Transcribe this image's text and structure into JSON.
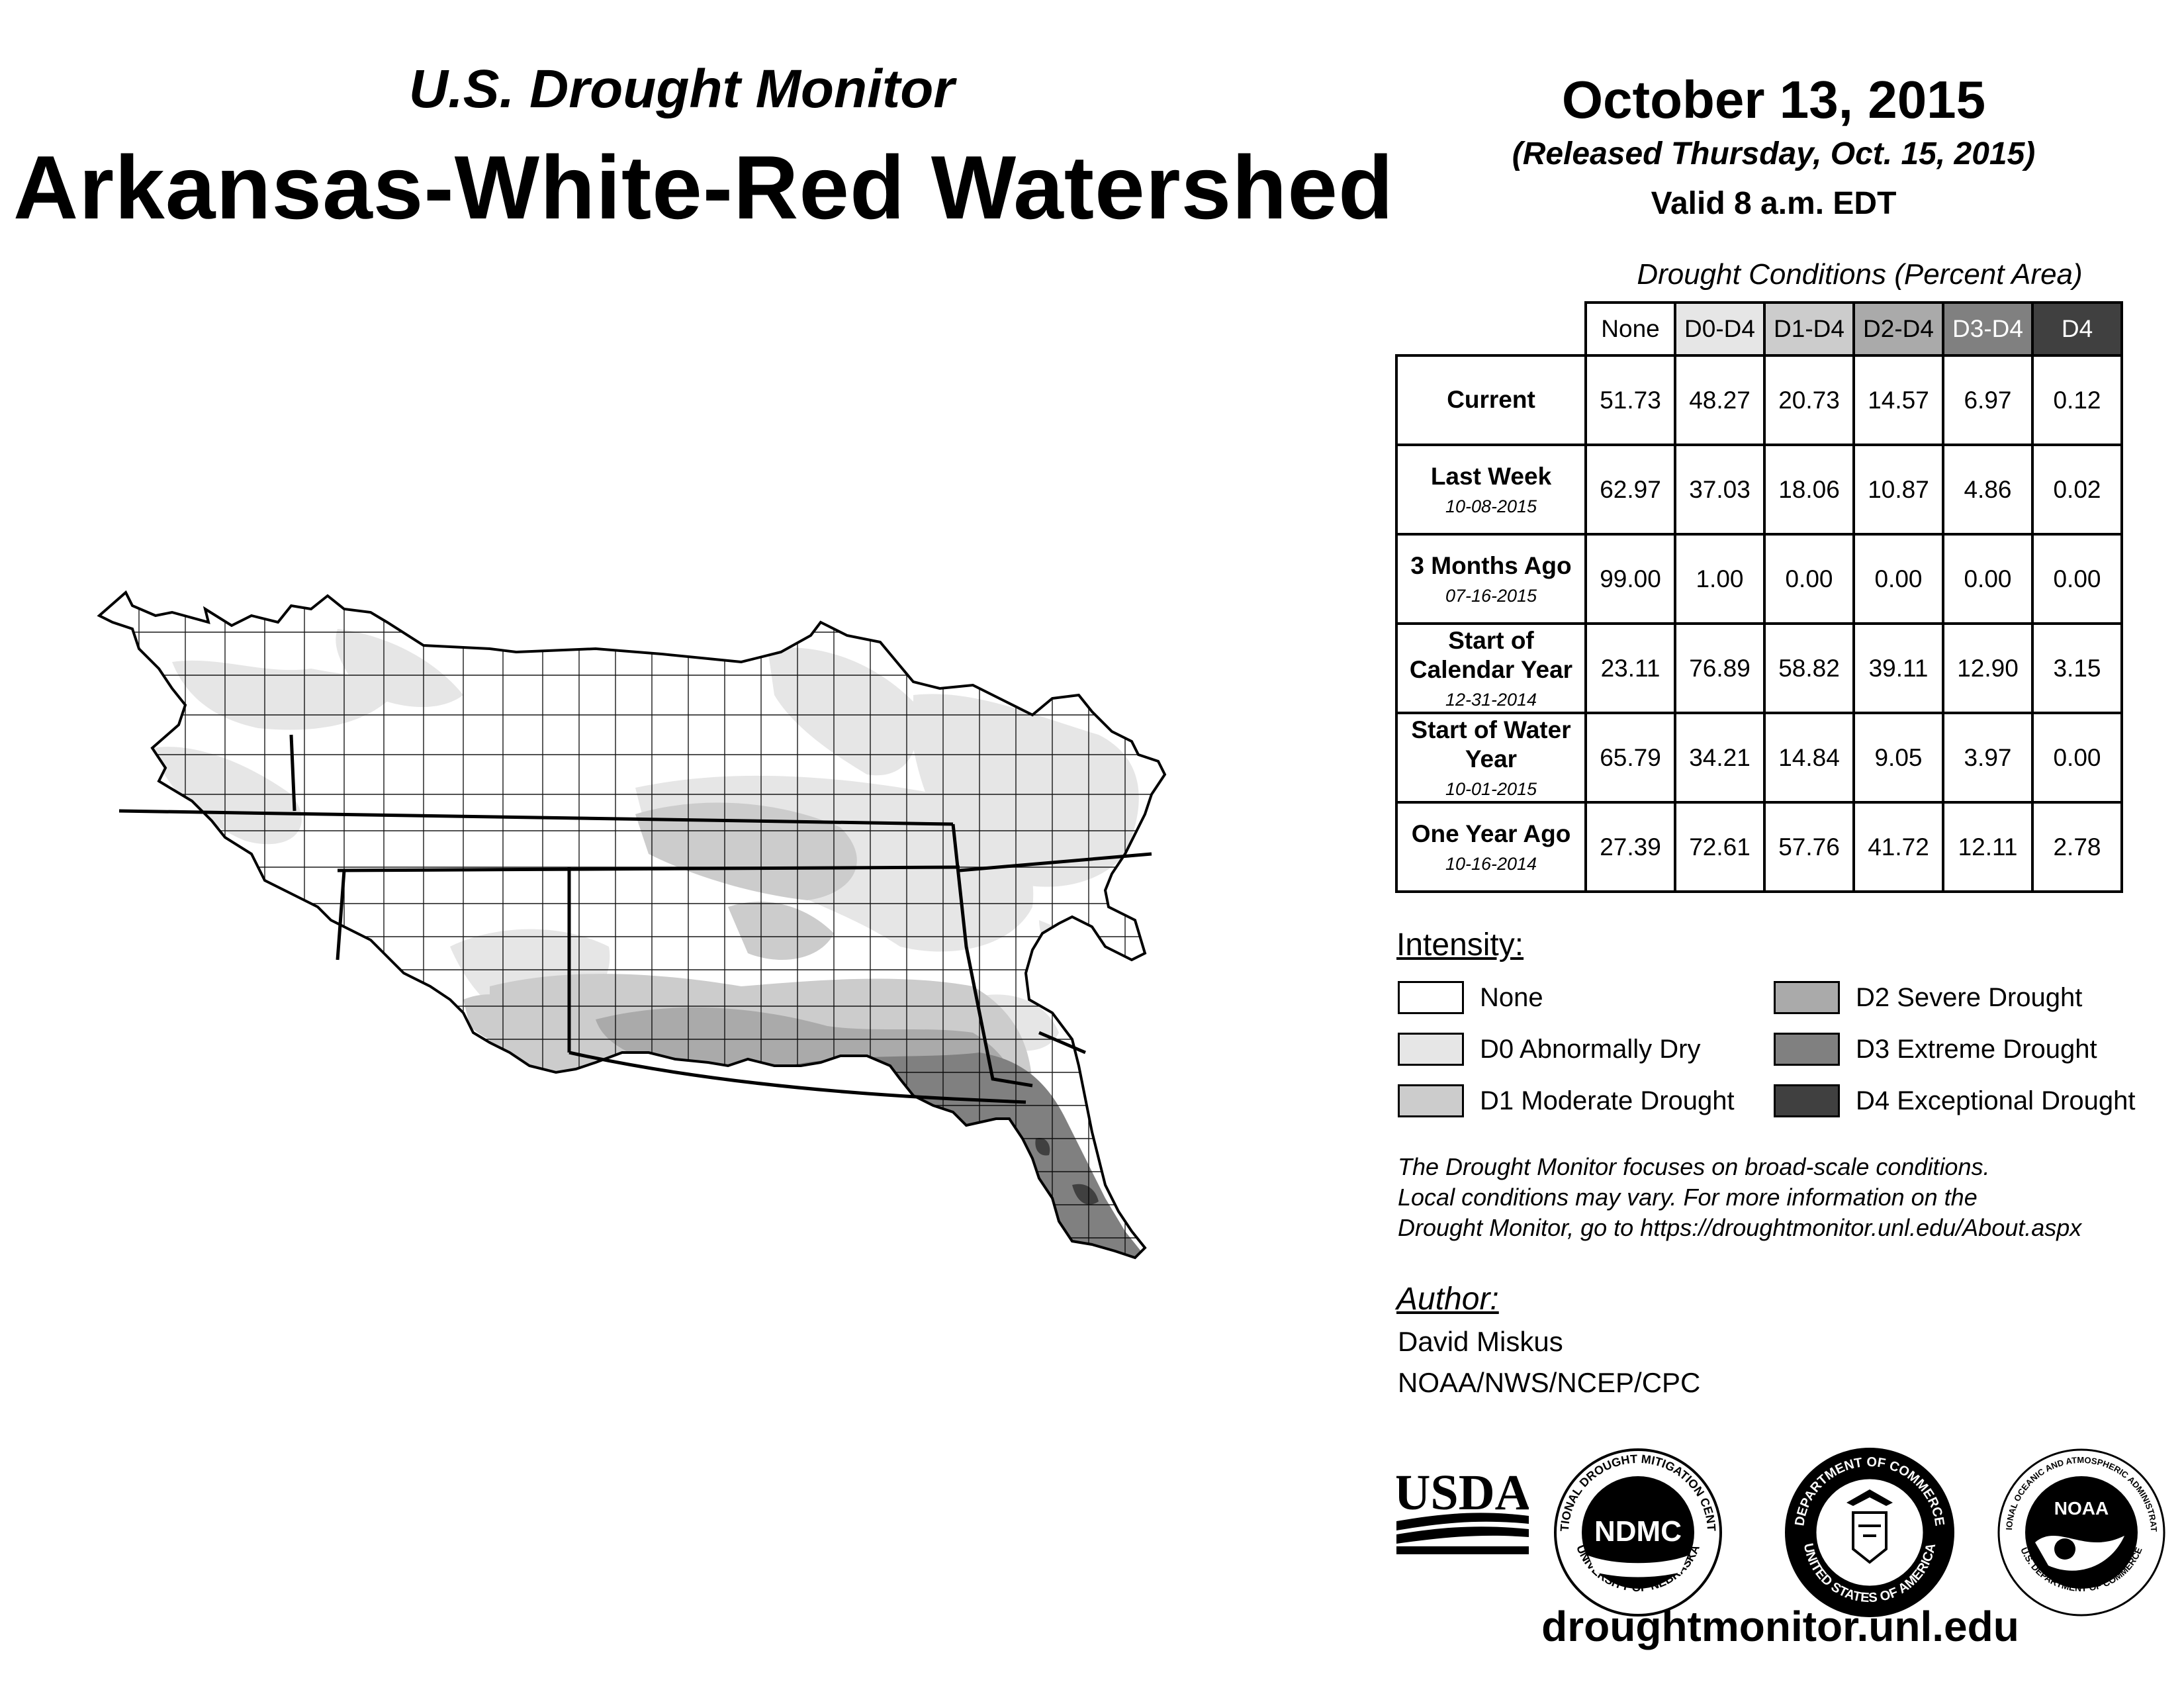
{
  "header": {
    "subtitle": "U.S. Drought Monitor",
    "title": "Arkansas-White-Red Watershed"
  },
  "date": {
    "title": "October 13, 2015",
    "released": "(Released Thursday, Oct. 15, 2015)",
    "valid": "Valid 8 a.m. EDT"
  },
  "table": {
    "caption": "Drought Conditions (Percent Area)",
    "columns": [
      "None",
      "D0-D4",
      "D1-D4",
      "D2-D4",
      "D3-D4",
      "D4"
    ],
    "rows": [
      {
        "label": "Current",
        "sublabel": "",
        "values": [
          "51.73",
          "48.27",
          "20.73",
          "14.57",
          "6.97",
          "0.12"
        ]
      },
      {
        "label": "Last Week",
        "sublabel": "10-08-2015",
        "values": [
          "62.97",
          "37.03",
          "18.06",
          "10.87",
          "4.86",
          "0.02"
        ]
      },
      {
        "label": "3 Months Ago",
        "sublabel": "07-16-2015",
        "values": [
          "99.00",
          "1.00",
          "0.00",
          "0.00",
          "0.00",
          "0.00"
        ]
      },
      {
        "label": "Start of Calendar Year",
        "sublabel": "12-31-2014",
        "values": [
          "23.11",
          "76.89",
          "58.82",
          "39.11",
          "12.90",
          "3.15"
        ]
      },
      {
        "label": "Start of Water Year",
        "sublabel": "10-01-2015",
        "values": [
          "65.79",
          "34.21",
          "14.84",
          "9.05",
          "3.97",
          "0.00"
        ]
      },
      {
        "label": "One Year Ago",
        "sublabel": "10-16-2014",
        "values": [
          "27.39",
          "72.61",
          "57.76",
          "41.72",
          "12.11",
          "2.78"
        ]
      }
    ]
  },
  "legend": {
    "title": "Intensity:",
    "items": [
      {
        "label": "None",
        "color": "#ffffff"
      },
      {
        "label": "D0 Abnormally Dry",
        "color": "#e6e6e6"
      },
      {
        "label": "D1 Moderate Drought",
        "color": "#cccccc"
      },
      {
        "label": "D2 Severe Drought",
        "color": "#aaaaaa"
      },
      {
        "label": "D3 Extreme Drought",
        "color": "#808080"
      },
      {
        "label": "D4 Exceptional Drought",
        "color": "#404040"
      }
    ]
  },
  "footnote": [
    "The Drought Monitor focuses on broad-scale conditions.",
    "Local conditions may vary. For more information on the",
    "Drought Monitor, go to https://droughtmonitor.unl.edu/About.aspx"
  ],
  "author": {
    "title": "Author:",
    "name": "David Miskus",
    "org": "NOAA/NWS/NCEP/CPC"
  },
  "logos": {
    "usda": "USDA",
    "ndmc": "NDMC",
    "ndmc_ring_top": "NATIONAL DROUGHT MITIGATION CENTER",
    "ndmc_ring_bottom": "UNIVERSITY OF NEBRASKA",
    "doc_ring_top": "DEPARTMENT OF COMMERCE",
    "doc_ring_bottom": "UNITED STATES OF AMERICA",
    "noaa": "NOAA",
    "noaa_ring_top": "NATIONAL OCEANIC AND ATMOSPHERIC ADMINISTRATION",
    "noaa_ring_bottom": "U.S. DEPARTMENT OF COMMERCE"
  },
  "website": "droughtmonitor.unl.edu"
}
